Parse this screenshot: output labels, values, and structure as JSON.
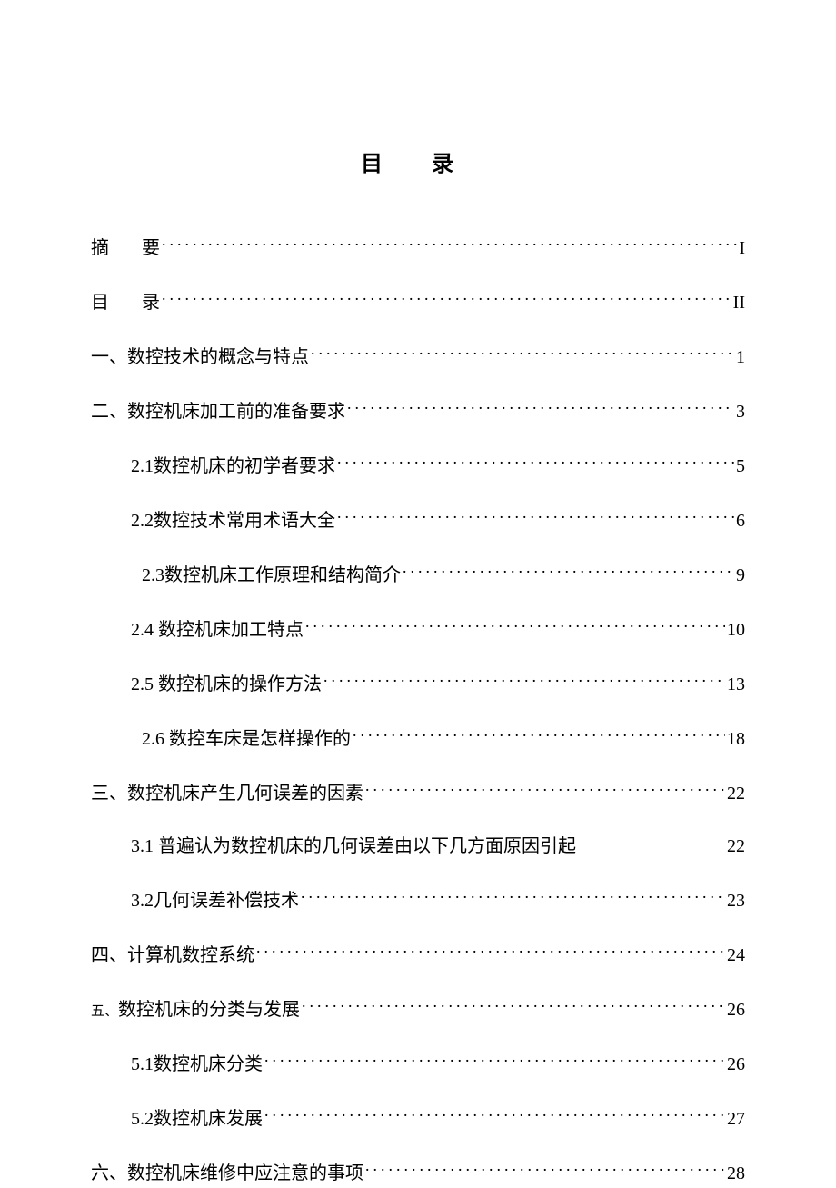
{
  "title": "目  录",
  "text_color": "#000000",
  "background_color": "#ffffff",
  "font_size_body": 20,
  "font_size_title": 24,
  "entries": [
    {
      "level": 0,
      "label_prefix": "摘",
      "label_spaced": true,
      "label_rest": "要",
      "page": "I",
      "dots": true
    },
    {
      "level": 0,
      "label_prefix": "目",
      "label_spaced": true,
      "label_rest": "录",
      "page": "II",
      "dots": true
    },
    {
      "level": 0,
      "label": "一、数控技术的概念与特点",
      "page": "1",
      "dots": true
    },
    {
      "level": 0,
      "label": "二、数控机床加工前的准备要求",
      "page": "3",
      "dots": true
    },
    {
      "level": 1,
      "label": "2.1数控机床的初学者要求  ",
      "page": "5",
      "dots": true
    },
    {
      "level": 1,
      "label": "2.2数控技术常用术语大全",
      "page": "6",
      "dots": true
    },
    {
      "level": 2,
      "label": "2.3数控机床工作原理和结构简介",
      "page": "9",
      "dots": true
    },
    {
      "level": 1,
      "label": "2.4  数控机床加工特点",
      "page": "10",
      "dots": true
    },
    {
      "level": 1,
      "label": "2.5  数控机床的操作方法",
      "page": "13",
      "dots": true
    },
    {
      "level": 2,
      "label": "2.6  数控车床是怎样操作的",
      "page": "18",
      "dots": true
    },
    {
      "level": 0,
      "label": "三、数控机床产生几何误差的因素",
      "page": "22",
      "dots": true
    },
    {
      "level": 1,
      "label": "3.1  普遍认为数控机床的几何误差由以下几方面原因引起",
      "page": "22",
      "dots": false
    },
    {
      "level": 1,
      "label": "3.2几何误差补偿技术",
      "page": "23",
      "dots": true
    },
    {
      "level": 0,
      "label": "四、计算机数控系统",
      "page": "24",
      "dots": true
    },
    {
      "level": 0,
      "label_html": true,
      "label_prefix_small": "五、",
      "label_rest": "数控机床的分类与发展",
      "page": "26",
      "dots": true
    },
    {
      "level": 1,
      "label": "5.1数控机床分类",
      "page": "26",
      "dots": true
    },
    {
      "level": 1,
      "label": "5.2数控机床发展 ",
      "page": "27",
      "dots": true
    },
    {
      "level": 0,
      "label": "六、数控机床维修中应注意的事项 ",
      "page": "28",
      "dots": true
    }
  ]
}
